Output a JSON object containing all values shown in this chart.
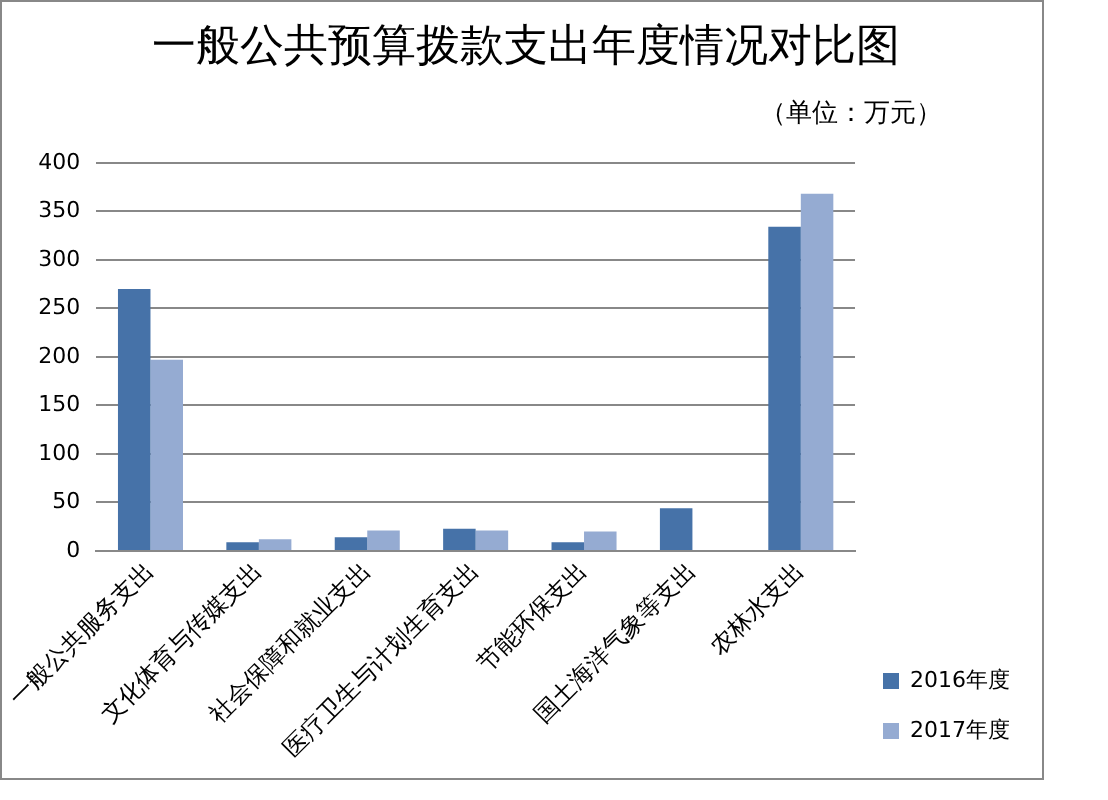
{
  "chart_data": {
    "type": "bar",
    "title": "一般公共预算拨款支出年度情况对比图",
    "annotations": [
      "（单位：万元）"
    ],
    "categories": [
      "一般公共服务支出",
      "文化体育与传媒支出",
      "社会保障和就业支出",
      "医疗卫生与计划生育支出",
      "节能环保支出",
      "国土海洋气象等支出",
      "农林水支出"
    ],
    "series": [
      {
        "name": "2016年度",
        "color": "#4672a8",
        "values": [
          270,
          9,
          14,
          23,
          9,
          44,
          334
        ]
      },
      {
        "name": "2017年度",
        "color": "#95abd2",
        "values": [
          197,
          12,
          21,
          21,
          20,
          0,
          368
        ]
      }
    ],
    "ylim": [
      0,
      400
    ],
    "yticks": [
      0,
      50,
      100,
      150,
      200,
      250,
      300,
      350,
      400
    ],
    "grid": "y",
    "legend": "right"
  }
}
